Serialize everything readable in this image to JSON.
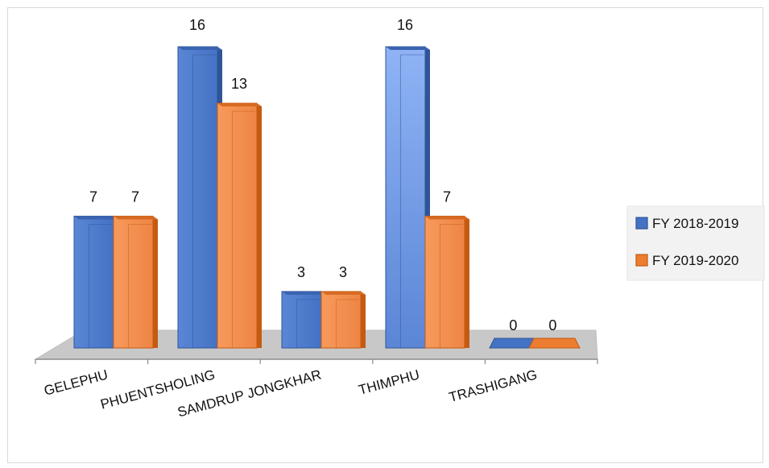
{
  "chart_data": {
    "type": "bar",
    "title": "",
    "xlabel": "",
    "ylabel": "",
    "categories": [
      "GELEPHU",
      "PHUENTSHOLING",
      "SAMDRUP JONGKHAR",
      "THIMPHU",
      "TRASHIGANG"
    ],
    "series": [
      {
        "name": "FY 2018-2019",
        "values": [
          7,
          16,
          3,
          16,
          0
        ],
        "color": "#4472C4"
      },
      {
        "name": "FY 2019-2020",
        "values": [
          7,
          13,
          3,
          7,
          0
        ],
        "color": "#ED7D31"
      }
    ],
    "ylim": [
      0,
      16
    ],
    "grid": false,
    "legend_position": "right",
    "data_labels": true,
    "three_d": true
  }
}
